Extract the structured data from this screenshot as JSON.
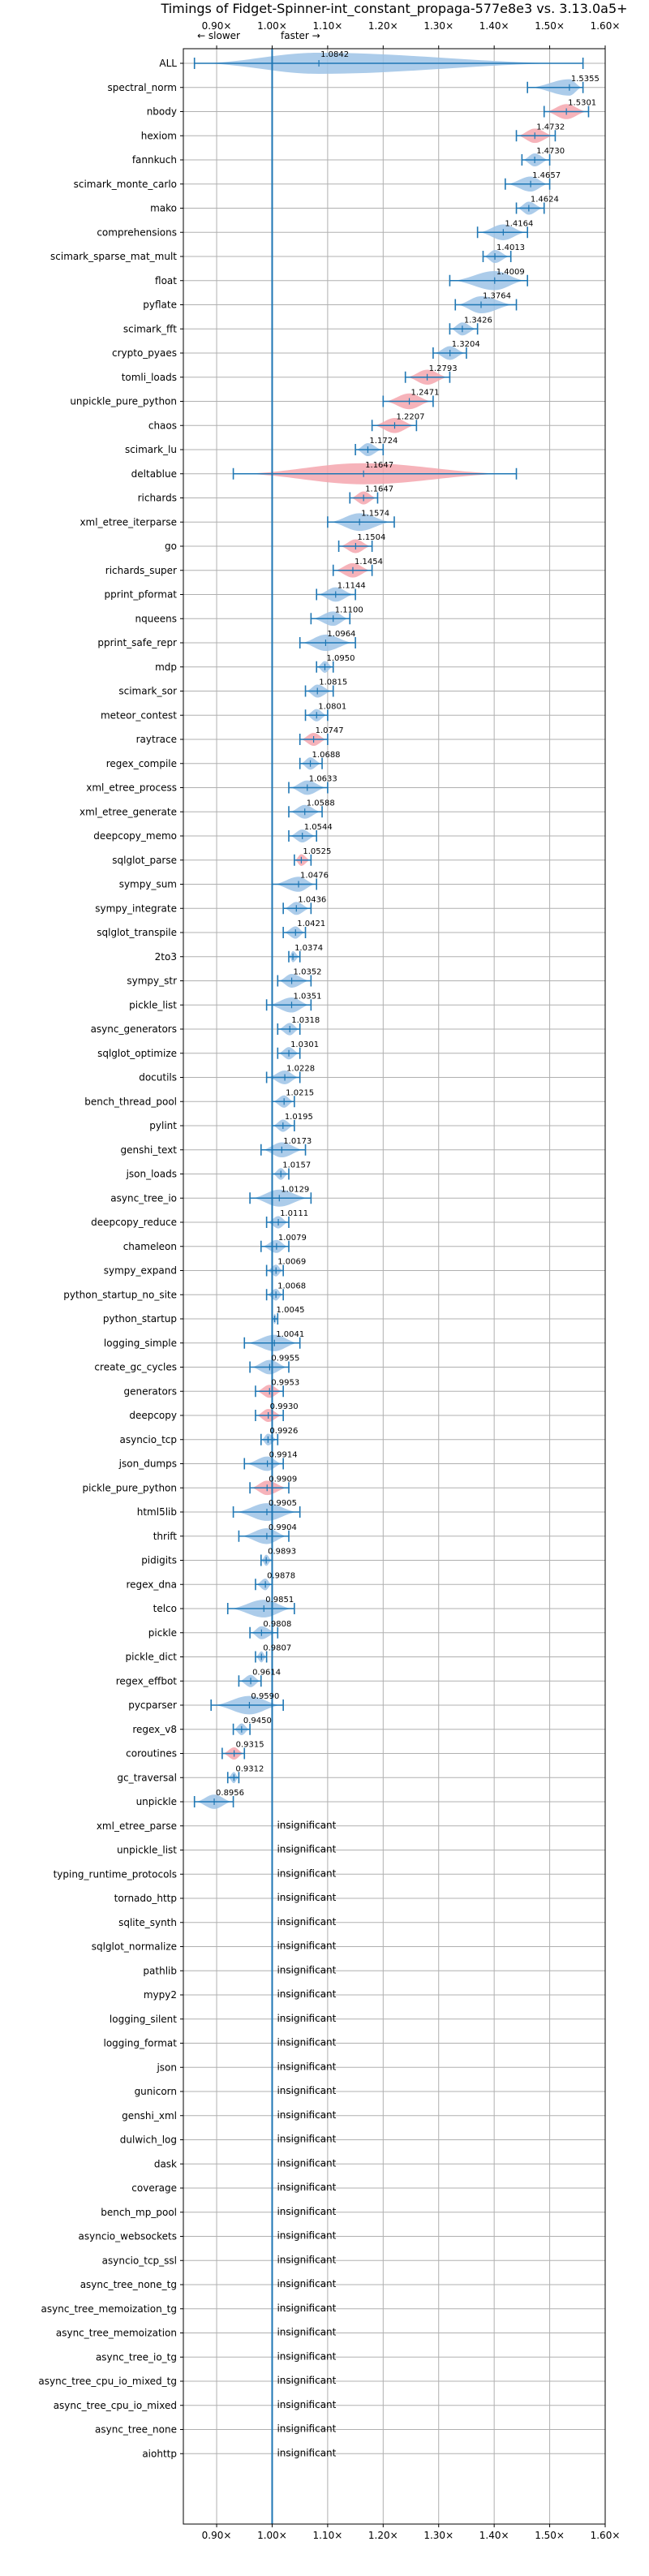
{
  "chart_data": {
    "type": "violin",
    "title": "Timings of Fidget-Spinner-int_constant_propaga-577e8e3 vs. 3.13.0a5+",
    "direction_labels": {
      "slower": "← slower",
      "faster": "faster →"
    },
    "xlim": [
      0.84,
      1.6
    ],
    "xticks": [
      0.9,
      1.0,
      1.1,
      1.2,
      1.3,
      1.4,
      1.5,
      1.6
    ],
    "xtick_labels": [
      "0.90×",
      "1.00×",
      "1.10×",
      "1.20×",
      "1.30×",
      "1.40×",
      "1.50×",
      "1.60×"
    ],
    "reference_line": 1.0,
    "grid": true,
    "insignificant_label": "insignificant",
    "colors": {
      "faster": "#9dc3e6",
      "slower": "#f4a6ae",
      "whisker": "#1f77b4",
      "reference": "#1f77b4",
      "grid": "#b0b0b0"
    },
    "benchmarks": [
      {
        "name": "ALL",
        "value": 1.0842,
        "label": "1.0842",
        "low": 0.86,
        "high": 1.56,
        "class": "faster"
      },
      {
        "name": "spectral_norm",
        "value": 1.5355,
        "label": "1.5355",
        "low": 1.46,
        "high": 1.56,
        "class": "faster"
      },
      {
        "name": "nbody",
        "value": 1.5301,
        "label": "1.5301",
        "low": 1.49,
        "high": 1.57,
        "class": "slower"
      },
      {
        "name": "hexiom",
        "value": 1.4732,
        "label": "1.4732",
        "low": 1.44,
        "high": 1.51,
        "class": "slower"
      },
      {
        "name": "fannkuch",
        "value": 1.473,
        "label": "1.4730",
        "low": 1.45,
        "high": 1.5,
        "class": "faster"
      },
      {
        "name": "scimark_monte_carlo",
        "value": 1.4657,
        "label": "1.4657",
        "low": 1.42,
        "high": 1.5,
        "class": "faster"
      },
      {
        "name": "mako",
        "value": 1.4624,
        "label": "1.4624",
        "low": 1.44,
        "high": 1.49,
        "class": "faster"
      },
      {
        "name": "comprehensions",
        "value": 1.4164,
        "label": "1.4164",
        "low": 1.37,
        "high": 1.46,
        "class": "faster"
      },
      {
        "name": "scimark_sparse_mat_mult",
        "value": 1.4013,
        "label": "1.4013",
        "low": 1.38,
        "high": 1.43,
        "class": "faster"
      },
      {
        "name": "float",
        "value": 1.4009,
        "label": "1.4009",
        "low": 1.32,
        "high": 1.46,
        "class": "faster"
      },
      {
        "name": "pyflate",
        "value": 1.3764,
        "label": "1.3764",
        "low": 1.33,
        "high": 1.44,
        "class": "faster"
      },
      {
        "name": "scimark_fft",
        "value": 1.3426,
        "label": "1.3426",
        "low": 1.32,
        "high": 1.37,
        "class": "faster"
      },
      {
        "name": "crypto_pyaes",
        "value": 1.3204,
        "label": "1.3204",
        "low": 1.29,
        "high": 1.35,
        "class": "faster"
      },
      {
        "name": "tomli_loads",
        "value": 1.2793,
        "label": "1.2793",
        "low": 1.24,
        "high": 1.32,
        "class": "slower"
      },
      {
        "name": "unpickle_pure_python",
        "value": 1.2471,
        "label": "1.2471",
        "low": 1.2,
        "high": 1.29,
        "class": "slower"
      },
      {
        "name": "chaos",
        "value": 1.2207,
        "label": "1.2207",
        "low": 1.18,
        "high": 1.26,
        "class": "slower"
      },
      {
        "name": "scimark_lu",
        "value": 1.1724,
        "label": "1.1724",
        "low": 1.15,
        "high": 1.2,
        "class": "faster"
      },
      {
        "name": "deltablue",
        "value": 1.1647,
        "label": "1.1647",
        "low": 0.93,
        "high": 1.44,
        "class": "slower"
      },
      {
        "name": "richards",
        "value": 1.1647,
        "label": "1.1647",
        "low": 1.14,
        "high": 1.19,
        "class": "slower"
      },
      {
        "name": "xml_etree_iterparse",
        "value": 1.1574,
        "label": "1.1574",
        "low": 1.1,
        "high": 1.22,
        "class": "faster"
      },
      {
        "name": "go",
        "value": 1.1504,
        "label": "1.1504",
        "low": 1.12,
        "high": 1.18,
        "class": "slower"
      },
      {
        "name": "richards_super",
        "value": 1.1454,
        "label": "1.1454",
        "low": 1.11,
        "high": 1.18,
        "class": "slower"
      },
      {
        "name": "pprint_pformat",
        "value": 1.1144,
        "label": "1.1144",
        "low": 1.08,
        "high": 1.15,
        "class": "faster"
      },
      {
        "name": "nqueens",
        "value": 1.11,
        "label": "1.1100",
        "low": 1.07,
        "high": 1.14,
        "class": "faster"
      },
      {
        "name": "pprint_safe_repr",
        "value": 1.0964,
        "label": "1.0964",
        "low": 1.05,
        "high": 1.15,
        "class": "faster"
      },
      {
        "name": "mdp",
        "value": 1.095,
        "label": "1.0950",
        "low": 1.08,
        "high": 1.11,
        "class": "faster"
      },
      {
        "name": "scimark_sor",
        "value": 1.0815,
        "label": "1.0815",
        "low": 1.06,
        "high": 1.11,
        "class": "faster"
      },
      {
        "name": "meteor_contest",
        "value": 1.0801,
        "label": "1.0801",
        "low": 1.06,
        "high": 1.1,
        "class": "faster"
      },
      {
        "name": "raytrace",
        "value": 1.0747,
        "label": "1.0747",
        "low": 1.05,
        "high": 1.1,
        "class": "slower"
      },
      {
        "name": "regex_compile",
        "value": 1.0688,
        "label": "1.0688",
        "low": 1.05,
        "high": 1.09,
        "class": "faster"
      },
      {
        "name": "xml_etree_process",
        "value": 1.0633,
        "label": "1.0633",
        "low": 1.03,
        "high": 1.1,
        "class": "faster"
      },
      {
        "name": "xml_etree_generate",
        "value": 1.0588,
        "label": "1.0588",
        "low": 1.03,
        "high": 1.09,
        "class": "faster"
      },
      {
        "name": "deepcopy_memo",
        "value": 1.0544,
        "label": "1.0544",
        "low": 1.03,
        "high": 1.08,
        "class": "faster"
      },
      {
        "name": "sqlglot_parse",
        "value": 1.0525,
        "label": "1.0525",
        "low": 1.04,
        "high": 1.07,
        "class": "slower"
      },
      {
        "name": "sympy_sum",
        "value": 1.0476,
        "label": "1.0476",
        "low": 1.0,
        "high": 1.08,
        "class": "faster"
      },
      {
        "name": "sympy_integrate",
        "value": 1.0436,
        "label": "1.0436",
        "low": 1.02,
        "high": 1.07,
        "class": "faster"
      },
      {
        "name": "sqlglot_transpile",
        "value": 1.0421,
        "label": "1.0421",
        "low": 1.02,
        "high": 1.06,
        "class": "faster"
      },
      {
        "name": "2to3",
        "value": 1.0374,
        "label": "1.0374",
        "low": 1.03,
        "high": 1.05,
        "class": "faster"
      },
      {
        "name": "sympy_str",
        "value": 1.0352,
        "label": "1.0352",
        "low": 1.01,
        "high": 1.07,
        "class": "faster"
      },
      {
        "name": "pickle_list",
        "value": 1.0351,
        "label": "1.0351",
        "low": 0.99,
        "high": 1.07,
        "class": "faster"
      },
      {
        "name": "async_generators",
        "value": 1.0318,
        "label": "1.0318",
        "low": 1.01,
        "high": 1.05,
        "class": "faster"
      },
      {
        "name": "sqlglot_optimize",
        "value": 1.0301,
        "label": "1.0301",
        "low": 1.01,
        "high": 1.05,
        "class": "faster"
      },
      {
        "name": "docutils",
        "value": 1.0228,
        "label": "1.0228",
        "low": 0.99,
        "high": 1.05,
        "class": "faster"
      },
      {
        "name": "bench_thread_pool",
        "value": 1.0215,
        "label": "1.0215",
        "low": 1.0,
        "high": 1.04,
        "class": "faster"
      },
      {
        "name": "pylint",
        "value": 1.0195,
        "label": "1.0195",
        "low": 1.0,
        "high": 1.04,
        "class": "faster"
      },
      {
        "name": "genshi_text",
        "value": 1.0173,
        "label": "1.0173",
        "low": 0.98,
        "high": 1.06,
        "class": "faster"
      },
      {
        "name": "json_loads",
        "value": 1.0157,
        "label": "1.0157",
        "low": 1.0,
        "high": 1.03,
        "class": "faster"
      },
      {
        "name": "async_tree_io",
        "value": 1.0129,
        "label": "1.0129",
        "low": 0.96,
        "high": 1.07,
        "class": "faster"
      },
      {
        "name": "deepcopy_reduce",
        "value": 1.0111,
        "label": "1.0111",
        "low": 0.99,
        "high": 1.03,
        "class": "faster"
      },
      {
        "name": "chameleon",
        "value": 1.0079,
        "label": "1.0079",
        "low": 0.98,
        "high": 1.03,
        "class": "faster"
      },
      {
        "name": "sympy_expand",
        "value": 1.0069,
        "label": "1.0069",
        "low": 0.99,
        "high": 1.02,
        "class": "faster"
      },
      {
        "name": "python_startup_no_site",
        "value": 1.0068,
        "label": "1.0068",
        "low": 0.99,
        "high": 1.02,
        "class": "faster"
      },
      {
        "name": "python_startup",
        "value": 1.0045,
        "label": "1.0045",
        "low": 1.0,
        "high": 1.01,
        "class": "faster"
      },
      {
        "name": "logging_simple",
        "value": 1.0041,
        "label": "1.0041",
        "low": 0.95,
        "high": 1.05,
        "class": "faster"
      },
      {
        "name": "create_gc_cycles",
        "value": 0.9955,
        "label": "0.9955",
        "low": 0.96,
        "high": 1.03,
        "class": "faster"
      },
      {
        "name": "generators",
        "value": 0.9953,
        "label": "0.9953",
        "low": 0.97,
        "high": 1.02,
        "class": "slower"
      },
      {
        "name": "deepcopy",
        "value": 0.993,
        "label": "0.9930",
        "low": 0.97,
        "high": 1.02,
        "class": "slower"
      },
      {
        "name": "asyncio_tcp",
        "value": 0.9926,
        "label": "0.9926",
        "low": 0.98,
        "high": 1.01,
        "class": "faster"
      },
      {
        "name": "json_dumps",
        "value": 0.9914,
        "label": "0.9914",
        "low": 0.95,
        "high": 1.02,
        "class": "faster"
      },
      {
        "name": "pickle_pure_python",
        "value": 0.9909,
        "label": "0.9909",
        "low": 0.96,
        "high": 1.03,
        "class": "slower"
      },
      {
        "name": "html5lib",
        "value": 0.9905,
        "label": "0.9905",
        "low": 0.93,
        "high": 1.05,
        "class": "faster"
      },
      {
        "name": "thrift",
        "value": 0.9904,
        "label": "0.9904",
        "low": 0.94,
        "high": 1.03,
        "class": "faster"
      },
      {
        "name": "pidigits",
        "value": 0.9893,
        "label": "0.9893",
        "low": 0.98,
        "high": 1.0,
        "class": "faster"
      },
      {
        "name": "regex_dna",
        "value": 0.9878,
        "label": "0.9878",
        "low": 0.97,
        "high": 1.0,
        "class": "faster"
      },
      {
        "name": "telco",
        "value": 0.9851,
        "label": "0.9851",
        "low": 0.92,
        "high": 1.04,
        "class": "faster"
      },
      {
        "name": "pickle",
        "value": 0.9808,
        "label": "0.9808",
        "low": 0.96,
        "high": 1.01,
        "class": "faster"
      },
      {
        "name": "pickle_dict",
        "value": 0.9807,
        "label": "0.9807",
        "low": 0.97,
        "high": 0.99,
        "class": "faster"
      },
      {
        "name": "regex_effbot",
        "value": 0.9614,
        "label": "0.9614",
        "low": 0.94,
        "high": 0.98,
        "class": "faster"
      },
      {
        "name": "pycparser",
        "value": 0.959,
        "label": "0.9590",
        "low": 0.89,
        "high": 1.02,
        "class": "faster"
      },
      {
        "name": "regex_v8",
        "value": 0.945,
        "label": "0.9450",
        "low": 0.93,
        "high": 0.96,
        "class": "faster"
      },
      {
        "name": "coroutines",
        "value": 0.9315,
        "label": "0.9315",
        "low": 0.91,
        "high": 0.95,
        "class": "slower"
      },
      {
        "name": "gc_traversal",
        "value": 0.9312,
        "label": "0.9312",
        "low": 0.92,
        "high": 0.94,
        "class": "faster"
      },
      {
        "name": "unpickle",
        "value": 0.8956,
        "label": "0.8956",
        "low": 0.86,
        "high": 0.93,
        "class": "faster"
      },
      {
        "name": "xml_etree_parse",
        "value": null,
        "label": "insignificant",
        "class": "insignificant"
      },
      {
        "name": "unpickle_list",
        "value": null,
        "label": "insignificant",
        "class": "insignificant"
      },
      {
        "name": "typing_runtime_protocols",
        "value": null,
        "label": "insignificant",
        "class": "insignificant"
      },
      {
        "name": "tornado_http",
        "value": null,
        "label": "insignificant",
        "class": "insignificant"
      },
      {
        "name": "sqlite_synth",
        "value": null,
        "label": "insignificant",
        "class": "insignificant"
      },
      {
        "name": "sqlglot_normalize",
        "value": null,
        "label": "insignificant",
        "class": "insignificant"
      },
      {
        "name": "pathlib",
        "value": null,
        "label": "insignificant",
        "class": "insignificant"
      },
      {
        "name": "mypy2",
        "value": null,
        "label": "insignificant",
        "class": "insignificant"
      },
      {
        "name": "logging_silent",
        "value": null,
        "label": "insignificant",
        "class": "insignificant"
      },
      {
        "name": "logging_format",
        "value": null,
        "label": "insignificant",
        "class": "insignificant"
      },
      {
        "name": "json",
        "value": null,
        "label": "insignificant",
        "class": "insignificant"
      },
      {
        "name": "gunicorn",
        "value": null,
        "label": "insignificant",
        "class": "insignificant"
      },
      {
        "name": "genshi_xml",
        "value": null,
        "label": "insignificant",
        "class": "insignificant"
      },
      {
        "name": "dulwich_log",
        "value": null,
        "label": "insignificant",
        "class": "insignificant"
      },
      {
        "name": "dask",
        "value": null,
        "label": "insignificant",
        "class": "insignificant"
      },
      {
        "name": "coverage",
        "value": null,
        "label": "insignificant",
        "class": "insignificant"
      },
      {
        "name": "bench_mp_pool",
        "value": null,
        "label": "insignificant",
        "class": "insignificant"
      },
      {
        "name": "asyncio_websockets",
        "value": null,
        "label": "insignificant",
        "class": "insignificant"
      },
      {
        "name": "asyncio_tcp_ssl",
        "value": null,
        "label": "insignificant",
        "class": "insignificant"
      },
      {
        "name": "async_tree_none_tg",
        "value": null,
        "label": "insignificant",
        "class": "insignificant"
      },
      {
        "name": "async_tree_memoization_tg",
        "value": null,
        "label": "insignificant",
        "class": "insignificant"
      },
      {
        "name": "async_tree_memoization",
        "value": null,
        "label": "insignificant",
        "class": "insignificant"
      },
      {
        "name": "async_tree_io_tg",
        "value": null,
        "label": "insignificant",
        "class": "insignificant"
      },
      {
        "name": "async_tree_cpu_io_mixed_tg",
        "value": null,
        "label": "insignificant",
        "class": "insignificant"
      },
      {
        "name": "async_tree_cpu_io_mixed",
        "value": null,
        "label": "insignificant",
        "class": "insignificant"
      },
      {
        "name": "async_tree_none",
        "value": null,
        "label": "insignificant",
        "class": "insignificant"
      },
      {
        "name": "aiohttp",
        "value": null,
        "label": "insignificant",
        "class": "insignificant"
      }
    ]
  }
}
